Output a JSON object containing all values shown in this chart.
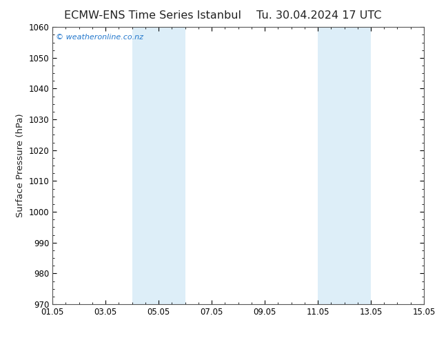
{
  "title_left": "ECMW-ENS Time Series Istanbul",
  "title_right": "Tu. 30.04.2024 17 UTC",
  "ylabel": "Surface Pressure (hPa)",
  "ylim": [
    970,
    1060
  ],
  "yticks": [
    970,
    980,
    990,
    1000,
    1010,
    1020,
    1030,
    1040,
    1050,
    1060
  ],
  "xlim_start": 0,
  "xlim_end": 14,
  "xtick_positions": [
    0,
    2,
    4,
    6,
    8,
    10,
    12,
    14
  ],
  "xtick_labels": [
    "01.05",
    "03.05",
    "05.05",
    "07.05",
    "09.05",
    "11.05",
    "13.05",
    "15.05"
  ],
  "shaded_bands": [
    {
      "x_start": 3.0,
      "x_end": 5.0
    },
    {
      "x_start": 10.0,
      "x_end": 12.0
    }
  ],
  "band_color": "#ddeef8",
  "background_color": "#ffffff",
  "plot_bg_color": "#ffffff",
  "title_color": "#222222",
  "watermark_text": "© weatheronline.co.nz",
  "watermark_color": "#2277cc",
  "title_fontsize": 11.5,
  "tick_fontsize": 8.5,
  "ylabel_fontsize": 9.5,
  "spine_color": "#555555"
}
